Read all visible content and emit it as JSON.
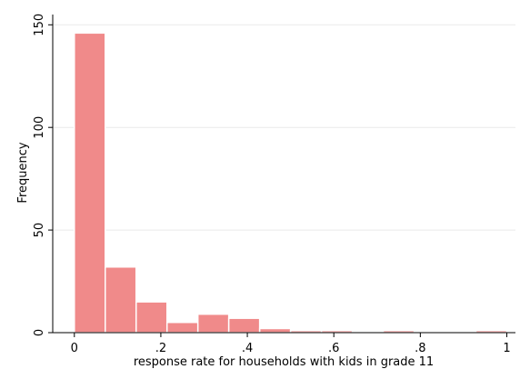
{
  "chart_data": {
    "type": "bar",
    "title": "",
    "xlabel": "response rate for households with kids in grade 11",
    "ylabel": "Frequency",
    "xlim": [
      -0.05,
      1.02
    ],
    "ylim": [
      0,
      155
    ],
    "xticks": [
      {
        "value": 0,
        "label": "0"
      },
      {
        "value": 0.2,
        "label": ".2"
      },
      {
        "value": 0.4,
        "label": ".4"
      },
      {
        "value": 0.6,
        "label": ".6"
      },
      {
        "value": 0.8,
        "label": ".8"
      },
      {
        "value": 1.0,
        "label": "1"
      }
    ],
    "yticks": [
      {
        "value": 0,
        "label": "0"
      },
      {
        "value": 50,
        "label": "50"
      },
      {
        "value": 100,
        "label": "100"
      },
      {
        "value": 150,
        "label": "150"
      }
    ],
    "grid": true,
    "bin_width": 0.0714,
    "bins": [
      {
        "start": 0.0,
        "value": 146
      },
      {
        "start": 0.0714,
        "value": 32
      },
      {
        "start": 0.1429,
        "value": 15
      },
      {
        "start": 0.2143,
        "value": 5
      },
      {
        "start": 0.2857,
        "value": 9
      },
      {
        "start": 0.3571,
        "value": 7
      },
      {
        "start": 0.4286,
        "value": 2
      },
      {
        "start": 0.5,
        "value": 1
      },
      {
        "start": 0.5714,
        "value": 1
      },
      {
        "start": 0.6429,
        "value": 0
      },
      {
        "start": 0.7143,
        "value": 1
      },
      {
        "start": 0.7857,
        "value": 0
      },
      {
        "start": 0.8571,
        "value": 0
      },
      {
        "start": 0.9286,
        "value": 1
      }
    ],
    "colors": {
      "bar_fill": "#f08a8a",
      "bar_stroke": "#ffffff",
      "grid": "#eaeaea",
      "axis": "#000000"
    }
  }
}
